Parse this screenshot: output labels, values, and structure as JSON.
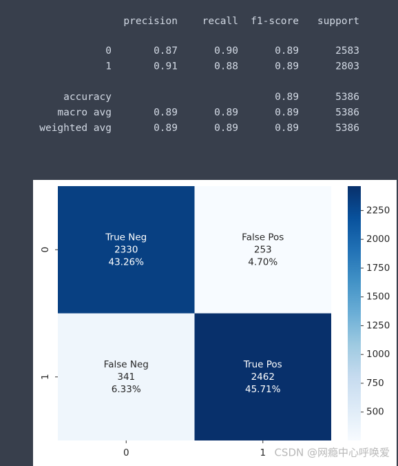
{
  "report": {
    "header": [
      "precision",
      "recall",
      "f1-score",
      "support"
    ],
    "rows": [
      {
        "label": "0",
        "precision": "0.87",
        "recall": "0.90",
        "f1-score": "0.89",
        "support": "2583"
      },
      {
        "label": "1",
        "precision": "0.91",
        "recall": "0.88",
        "f1-score": "0.89",
        "support": "2803"
      },
      {
        "label": "accuracy",
        "f1-score": "0.89",
        "support": "5386"
      },
      {
        "label": "macro avg",
        "precision": "0.89",
        "recall": "0.89",
        "f1-score": "0.89",
        "support": "5386"
      },
      {
        "label": "weighted avg",
        "precision": "0.89",
        "recall": "0.89",
        "f1-score": "0.89",
        "support": "5386"
      }
    ]
  },
  "chart_data": {
    "type": "heatmap",
    "x_categories": [
      "0",
      "1"
    ],
    "y_categories": [
      "0",
      "1"
    ],
    "values": [
      [
        2330,
        253
      ],
      [
        341,
        2462
      ]
    ],
    "group_names": [
      [
        "True Neg",
        "False Pos"
      ],
      [
        "False Neg",
        "True Pos"
      ]
    ],
    "percent_labels": [
      [
        "43.26%",
        "4.70%"
      ],
      [
        "6.33%",
        "45.71%"
      ]
    ],
    "zlim": [
      253,
      2462
    ],
    "zticks": [
      500,
      750,
      1000,
      1250,
      1500,
      1750,
      2000,
      2250
    ],
    "colors": [
      "#f7fbff",
      "#deebf7",
      "#c6dbef",
      "#9ecae1",
      "#6baed6",
      "#4292c6",
      "#2171b5",
      "#08519c",
      "#08306b"
    ]
  },
  "watermark": "CSDN @网瘾中心呼唤爱"
}
